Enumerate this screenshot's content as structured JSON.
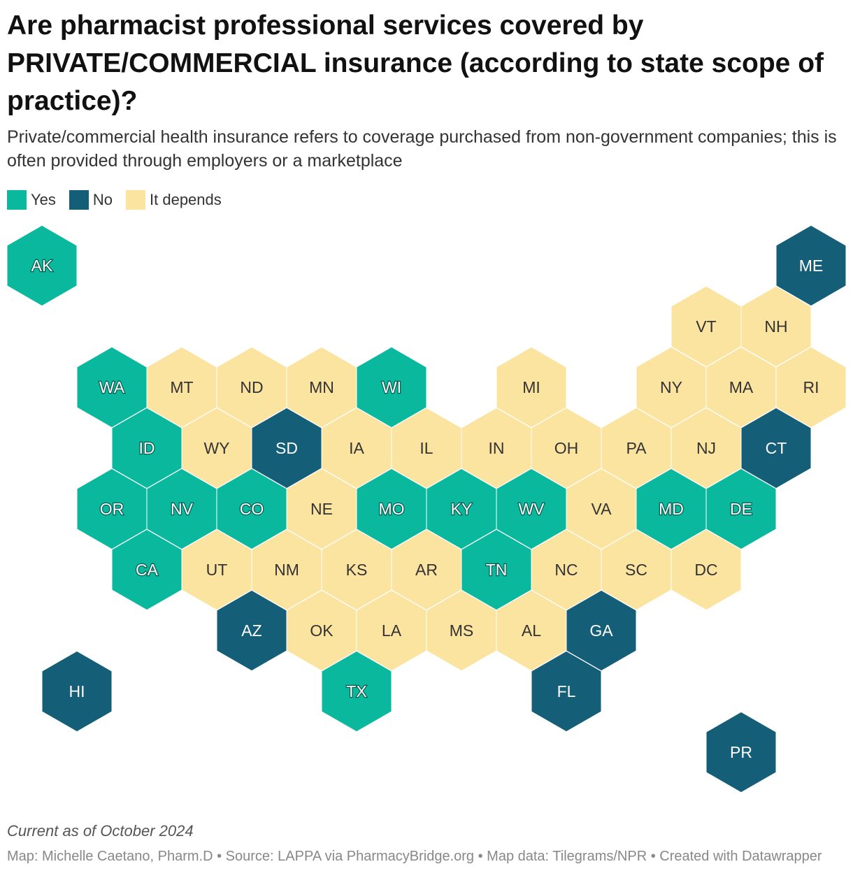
{
  "title": "Are pharmacist professional services covered by PRIVATE/COMMERCIAL insurance (according to state scope of practice)?",
  "subtitle": "Private/commercial health insurance refers to coverage purchased from non-government companies; this is often provided through employers or a marketplace",
  "legend": [
    {
      "label": "Yes",
      "color": "#0ab89e"
    },
    {
      "label": "No",
      "color": "#155e78"
    },
    {
      "label": "It depends",
      "color": "#fbe3a0"
    }
  ],
  "colors": {
    "Yes": "#0ab89e",
    "No": "#155e78",
    "It depends": "#fbe3a0"
  },
  "states": [
    {
      "code": "AK",
      "status": "Yes",
      "row": 0,
      "col": 0
    },
    {
      "code": "ME",
      "status": "No",
      "row": 0,
      "col": 11
    },
    {
      "code": "VT",
      "status": "It depends",
      "row": 1,
      "col": 9.5
    },
    {
      "code": "NH",
      "status": "It depends",
      "row": 1,
      "col": 10.5
    },
    {
      "code": "WA",
      "status": "Yes",
      "row": 2,
      "col": 1
    },
    {
      "code": "MT",
      "status": "It depends",
      "row": 2,
      "col": 2
    },
    {
      "code": "ND",
      "status": "It depends",
      "row": 2,
      "col": 3
    },
    {
      "code": "MN",
      "status": "It depends",
      "row": 2,
      "col": 4
    },
    {
      "code": "WI",
      "status": "Yes",
      "row": 2,
      "col": 5
    },
    {
      "code": "MI",
      "status": "It depends",
      "row": 2,
      "col": 7
    },
    {
      "code": "NY",
      "status": "It depends",
      "row": 2,
      "col": 9
    },
    {
      "code": "MA",
      "status": "It depends",
      "row": 2,
      "col": 10
    },
    {
      "code": "RI",
      "status": "It depends",
      "row": 2,
      "col": 11
    },
    {
      "code": "ID",
      "status": "Yes",
      "row": 3,
      "col": 1.5
    },
    {
      "code": "WY",
      "status": "It depends",
      "row": 3,
      "col": 2.5
    },
    {
      "code": "SD",
      "status": "No",
      "row": 3,
      "col": 3.5
    },
    {
      "code": "IA",
      "status": "It depends",
      "row": 3,
      "col": 4.5
    },
    {
      "code": "IL",
      "status": "It depends",
      "row": 3,
      "col": 5.5
    },
    {
      "code": "IN",
      "status": "It depends",
      "row": 3,
      "col": 6.5
    },
    {
      "code": "OH",
      "status": "It depends",
      "row": 3,
      "col": 7.5
    },
    {
      "code": "PA",
      "status": "It depends",
      "row": 3,
      "col": 8.5
    },
    {
      "code": "NJ",
      "status": "It depends",
      "row": 3,
      "col": 9.5
    },
    {
      "code": "CT",
      "status": "No",
      "row": 3,
      "col": 10.5
    },
    {
      "code": "OR",
      "status": "Yes",
      "row": 4,
      "col": 1
    },
    {
      "code": "NV",
      "status": "Yes",
      "row": 4,
      "col": 2
    },
    {
      "code": "CO",
      "status": "Yes",
      "row": 4,
      "col": 3
    },
    {
      "code": "NE",
      "status": "It depends",
      "row": 4,
      "col": 4
    },
    {
      "code": "MO",
      "status": "Yes",
      "row": 4,
      "col": 5
    },
    {
      "code": "KY",
      "status": "Yes",
      "row": 4,
      "col": 6
    },
    {
      "code": "WV",
      "status": "Yes",
      "row": 4,
      "col": 7
    },
    {
      "code": "VA",
      "status": "It depends",
      "row": 4,
      "col": 8
    },
    {
      "code": "MD",
      "status": "Yes",
      "row": 4,
      "col": 9
    },
    {
      "code": "DE",
      "status": "Yes",
      "row": 4,
      "col": 10
    },
    {
      "code": "CA",
      "status": "Yes",
      "row": 5,
      "col": 1.5
    },
    {
      "code": "UT",
      "status": "It depends",
      "row": 5,
      "col": 2.5
    },
    {
      "code": "NM",
      "status": "It depends",
      "row": 5,
      "col": 3.5
    },
    {
      "code": "KS",
      "status": "It depends",
      "row": 5,
      "col": 4.5
    },
    {
      "code": "AR",
      "status": "It depends",
      "row": 5,
      "col": 5.5
    },
    {
      "code": "TN",
      "status": "Yes",
      "row": 5,
      "col": 6.5
    },
    {
      "code": "NC",
      "status": "It depends",
      "row": 5,
      "col": 7.5
    },
    {
      "code": "SC",
      "status": "It depends",
      "row": 5,
      "col": 8.5
    },
    {
      "code": "DC",
      "status": "It depends",
      "row": 5,
      "col": 9.5
    },
    {
      "code": "AZ",
      "status": "No",
      "row": 6,
      "col": 3
    },
    {
      "code": "OK",
      "status": "It depends",
      "row": 6,
      "col": 4
    },
    {
      "code": "LA",
      "status": "It depends",
      "row": 6,
      "col": 5
    },
    {
      "code": "MS",
      "status": "It depends",
      "row": 6,
      "col": 6
    },
    {
      "code": "AL",
      "status": "It depends",
      "row": 6,
      "col": 7
    },
    {
      "code": "GA",
      "status": "No",
      "row": 6,
      "col": 8
    },
    {
      "code": "HI",
      "status": "No",
      "row": 7,
      "col": 0.5
    },
    {
      "code": "TX",
      "status": "Yes",
      "row": 7,
      "col": 4.5
    },
    {
      "code": "FL",
      "status": "No",
      "row": 7,
      "col": 7.5
    },
    {
      "code": "PR",
      "status": "No",
      "row": 8,
      "col": 10
    }
  ],
  "note": "Current as of October 2024",
  "credits": "Map: Michelle Caetano, Pharm.D • Source: LAPPA via PharmacyBridge.org • Map data: Tilegrams/NPR • Created with Datawrapper"
}
